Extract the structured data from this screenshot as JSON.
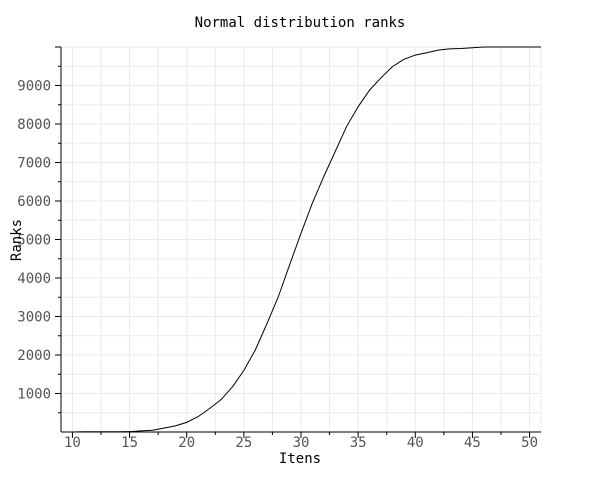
{
  "chart_data": {
    "type": "line",
    "title": "Normal distribution ranks",
    "xlabel": "Itens",
    "ylabel": "Ranks",
    "xlim": [
      9,
      51
    ],
    "ylim": [
      0,
      10000
    ],
    "x_ticks": [
      "10",
      "15",
      "20",
      "25",
      "30",
      "35",
      "40",
      "45",
      "50"
    ],
    "y_ticks": [
      "1000",
      "2000",
      "3000",
      "4000",
      "5000",
      "6000",
      "7000",
      "8000",
      "9000"
    ],
    "grid": true,
    "series": [
      {
        "color": "#000000",
        "x": [
          9,
          10,
          11,
          12,
          13,
          14,
          15,
          16,
          17,
          18,
          19,
          20,
          21,
          22,
          23,
          24,
          25,
          26,
          27,
          28,
          29,
          30,
          31,
          32,
          33,
          34,
          35,
          36,
          37,
          38,
          39,
          40,
          41,
          42,
          43,
          44,
          45,
          46,
          47,
          48,
          49,
          50,
          51
        ],
        "y": [
          0,
          0,
          5,
          5,
          5,
          5,
          10,
          30,
          45,
          100,
          160,
          250,
          400,
          610,
          840,
          1170,
          1600,
          2130,
          2800,
          3500,
          4340,
          5160,
          5950,
          6640,
          7290,
          7940,
          8450,
          8880,
          9200,
          9490,
          9680,
          9790,
          9850,
          9920,
          9950,
          9960,
          9980,
          10000,
          10000,
          10000,
          10000,
          10000,
          10000
        ]
      }
    ]
  }
}
